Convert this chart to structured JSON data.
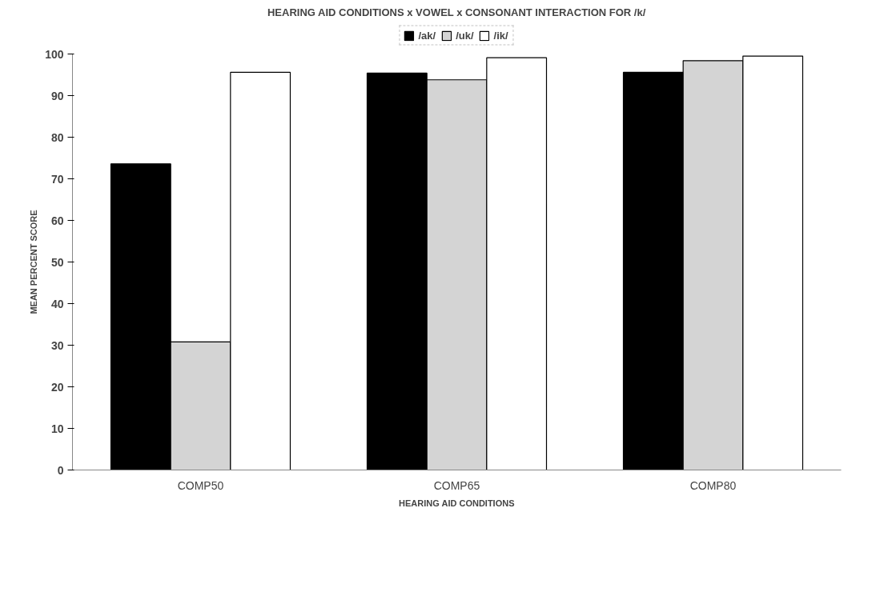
{
  "chart_data": {
    "type": "bar",
    "title": "HEARING AID CONDITIONS x VOWEL x CONSONANT INTERACTION FOR /k/",
    "xlabel": "HEARING AID CONDITIONS",
    "ylabel": "MEAN PERCENT SCORE",
    "categories": [
      "COMP50",
      "COMP65",
      "COMP80"
    ],
    "series": [
      {
        "name": "/ak/",
        "color": "#000000",
        "values": [
          73.6,
          95.4,
          95.6
        ]
      },
      {
        "name": "/uk/",
        "color": "#d4d4d4",
        "values": [
          30.8,
          93.8,
          98.4
        ]
      },
      {
        "name": "/ik/",
        "color": "#ffffff",
        "values": [
          95.6,
          99.1,
          99.5
        ]
      }
    ],
    "ylim": [
      0,
      100
    ],
    "yticks": [
      0,
      10,
      20,
      30,
      40,
      50,
      60,
      70,
      80,
      90,
      100
    ],
    "grid": false,
    "legend": "top"
  }
}
